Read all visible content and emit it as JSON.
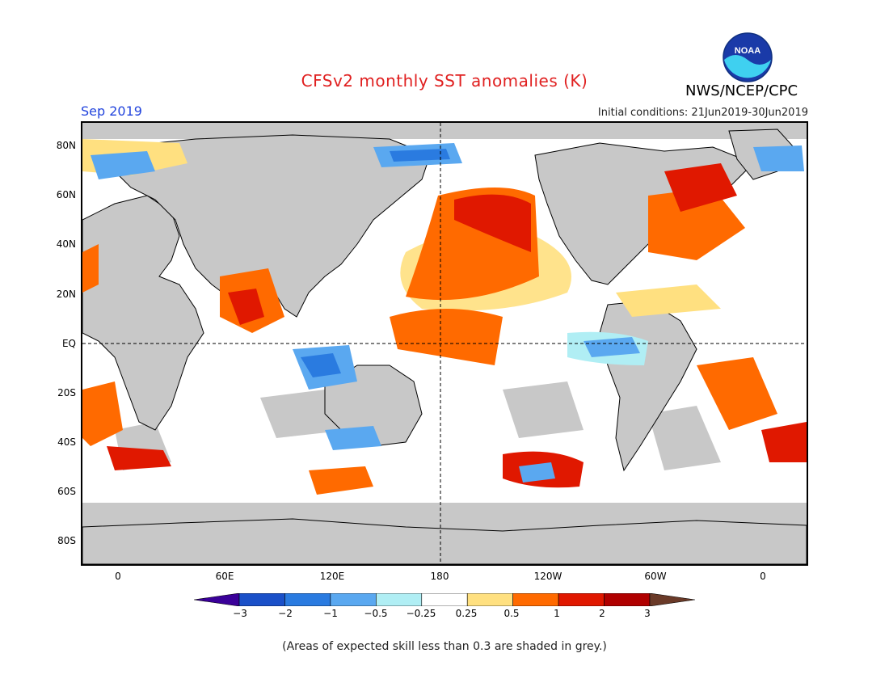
{
  "title": "CFSv2 monthly SST anomalies (K)",
  "agency": "NWS/NCEP/CPC",
  "month": "Sep 2019",
  "initial_conditions": "Initial conditions: 21Jun2019-30Jun2019",
  "logo_text": "NOAA",
  "footnote": "(Areas of expected skill less than 0.3 are shaded in grey.)",
  "lat_labels": [
    "80N",
    "60N",
    "40N",
    "20N",
    "EQ",
    "20S",
    "40S",
    "60S",
    "80S"
  ],
  "lon_labels": [
    "0",
    "60E",
    "120E",
    "180",
    "120W",
    "60W",
    "0"
  ],
  "colorbar": {
    "ticks": [
      "−3",
      "−2",
      "−1",
      "−0.5",
      "−0.25",
      "0.25",
      "0.5",
      "1",
      "2",
      "3"
    ],
    "colors": [
      "#3a0099",
      "#1a50c8",
      "#2a7be0",
      "#5aa8f0",
      "#b0eef4",
      "#ffffff",
      "#ffe080",
      "#ff6a00",
      "#e01800",
      "#b00000",
      "#6a3a28"
    ]
  },
  "colors": {
    "land": "#c8c8c8",
    "ocean": "#ffffff",
    "coast": "#000000"
  }
}
